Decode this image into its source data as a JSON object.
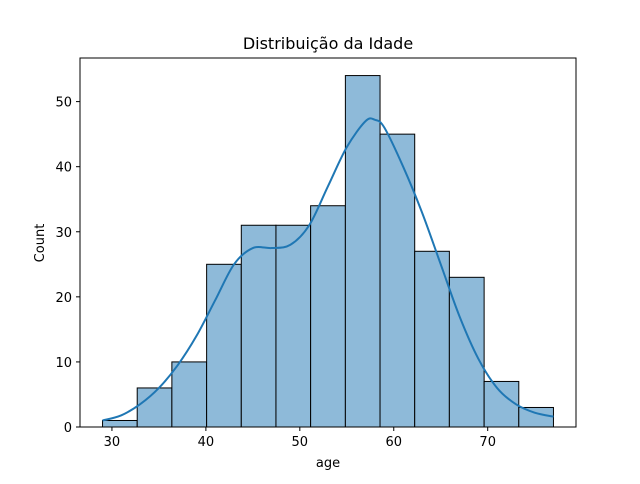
{
  "chart_data": {
    "type": "bar",
    "title": "Distribuição da Idade",
    "xlabel": "age",
    "ylabel": "Count",
    "xlim": [
      26.6,
      79.4
    ],
    "ylim": [
      0,
      56.7
    ],
    "xticks": [
      30,
      40,
      50,
      60,
      70
    ],
    "yticks": [
      0,
      10,
      20,
      30,
      40,
      50
    ],
    "bin_edges": [
      29,
      32.69,
      36.38,
      40.08,
      43.77,
      47.46,
      51.15,
      54.85,
      58.54,
      62.23,
      65.92,
      69.62,
      73.31,
      77
    ],
    "counts": [
      1,
      6,
      10,
      25,
      31,
      31,
      34,
      54,
      45,
      27,
      23,
      7,
      3
    ],
    "kde": {
      "x": [
        29,
        31,
        33,
        35,
        37,
        39,
        41,
        43,
        45,
        47,
        49,
        51,
        53,
        55,
        57,
        58,
        59,
        61,
        63,
        65,
        67,
        69,
        71,
        73,
        75,
        77
      ],
      "y": [
        1,
        1.8,
        3.5,
        6,
        9.5,
        14,
        19.5,
        25,
        27.5,
        27.5,
        28,
        31,
        37,
        43,
        47,
        47.2,
        46,
        40,
        33,
        25,
        17,
        10.5,
        6,
        3.5,
        2.2,
        1.6
      ]
    },
    "colors": {
      "bar_fill": "#8ebad9",
      "bar_edge": "#000000",
      "kde_line": "#1f77b4"
    },
    "grid": false,
    "legend": null
  }
}
